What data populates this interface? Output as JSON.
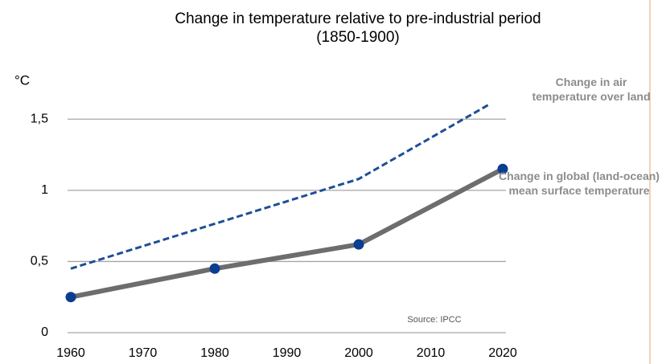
{
  "chart_data": {
    "type": "line",
    "title": "Change in temperature relative to pre-industrial period",
    "subtitle": "(1850-1900)",
    "y_label": "°C",
    "annotation": "Source: IPCC",
    "series": [
      {
        "name": "Change in air temperature over land",
        "color": "#1f4e96",
        "dashed": true,
        "markers": false,
        "x": [
          1960,
          2000,
          2018
        ],
        "values": [
          0.45,
          1.08,
          1.6
        ]
      },
      {
        "name": "Change in global (land-ocean) mean surface temperature",
        "color": "#6d6d6d",
        "marker_color": "#0b3d91",
        "dashed": false,
        "markers": true,
        "x": [
          1960,
          1980,
          2000,
          2020
        ],
        "values": [
          0.25,
          0.45,
          0.62,
          1.15
        ]
      }
    ],
    "xlim": [
      1960,
      2020
    ],
    "xticks": [
      1960,
      1970,
      1980,
      1990,
      2000,
      2010,
      2020
    ],
    "ylim": [
      0,
      1.75
    ],
    "yticks": [
      0,
      {
        "value": 0.5,
        "label": "0,5"
      },
      1,
      {
        "value": 1.5,
        "label": "1,5"
      }
    ],
    "grid": true
  }
}
